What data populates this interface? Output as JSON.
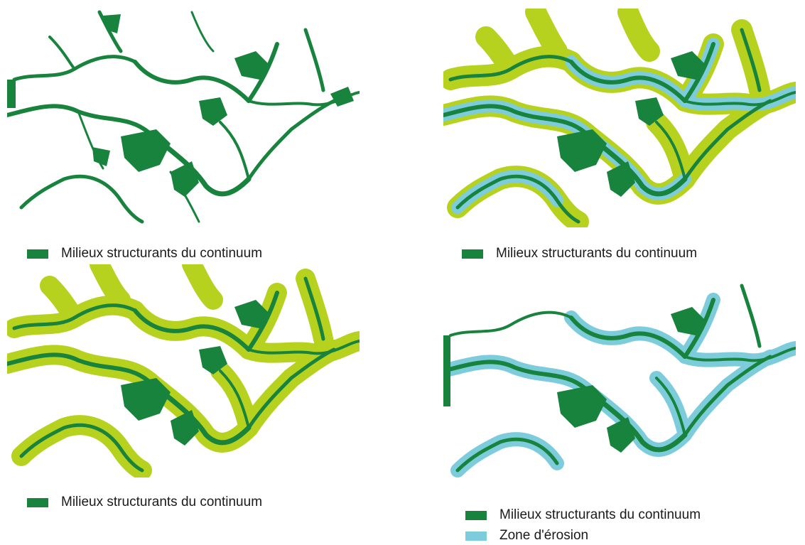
{
  "colors": {
    "green": "#17833d",
    "yellow_green": "#b7d21e",
    "light_blue": "#7cccdc"
  },
  "panels": [
    {
      "id": "map-top-left",
      "legend": [
        {
          "label": "Milieux structurants du continuum",
          "color": "#17833d"
        }
      ]
    },
    {
      "id": "map-top-right",
      "legend": [
        {
          "label": "Milieux structurants du continuum",
          "color": "#17833d"
        }
      ]
    },
    {
      "id": "map-bottom-left",
      "legend": [
        {
          "label": "Milieux structurants du continuum",
          "color": "#17833d"
        }
      ]
    },
    {
      "id": "map-bottom-right",
      "legend": [
        {
          "label": "Milieux structurants du continuum",
          "color": "#17833d"
        },
        {
          "label": "Zone d'érosion",
          "color": "#7cccdc"
        }
      ]
    }
  ]
}
